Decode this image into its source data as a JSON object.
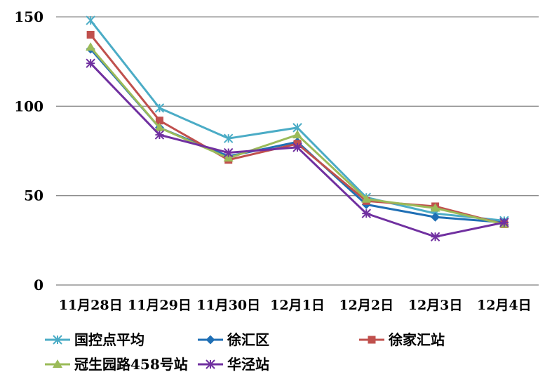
{
  "chart_data": {
    "type": "line",
    "title": "",
    "xlabel": "",
    "ylabel": "",
    "ylim": [
      0,
      150
    ],
    "yticks": [
      0,
      50,
      100,
      150
    ],
    "grid": "horizontal",
    "legend_position": "bottom",
    "categories": [
      "11月28日",
      "11月29日",
      "11月30日",
      "12月1日",
      "12月2日",
      "12月3日",
      "12月4日"
    ],
    "series": [
      {
        "name": "国控点平均",
        "color": "#4bacc6",
        "marker": "asterisk",
        "values": [
          148,
          99,
          82,
          88,
          49,
          40,
          36
        ]
      },
      {
        "name": "徐汇区",
        "color": "#1f6fb5",
        "marker": "diamond",
        "values": [
          132,
          88,
          72,
          80,
          45,
          38,
          35
        ]
      },
      {
        "name": "徐家汇站",
        "color": "#c0504d",
        "marker": "square",
        "values": [
          140,
          92,
          70,
          79,
          47,
          44,
          34
        ]
      },
      {
        "name": "冠生园路458号站",
        "color": "#9bbb59",
        "marker": "triangle",
        "values": [
          133,
          88,
          71,
          84,
          48,
          43,
          34
        ]
      },
      {
        "name": "华泾站",
        "color": "#7030a0",
        "marker": "star",
        "values": [
          124,
          84,
          74,
          77,
          40,
          27,
          35
        ]
      }
    ]
  }
}
